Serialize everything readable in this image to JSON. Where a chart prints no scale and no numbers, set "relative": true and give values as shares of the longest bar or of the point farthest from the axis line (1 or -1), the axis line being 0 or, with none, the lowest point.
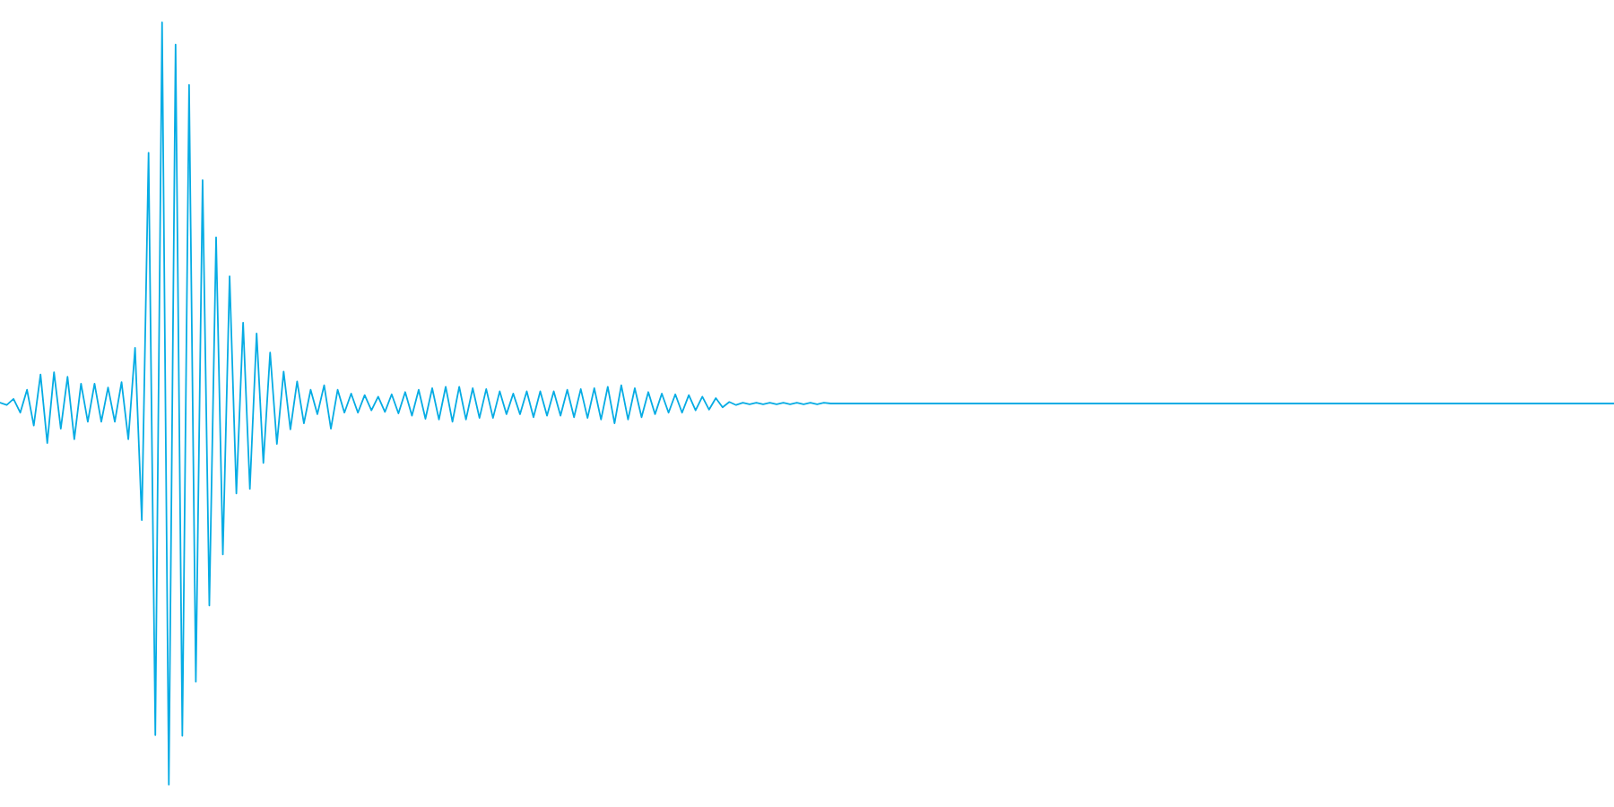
{
  "chart_data": {
    "type": "line",
    "relative": true,
    "color": "#06ace4",
    "categories": [
      null,
      null,
      null,
      null,
      null,
      null,
      null,
      null,
      null,
      null,
      null,
      null,
      null,
      null,
      null,
      null,
      null,
      null,
      null,
      null,
      null,
      null,
      null,
      null,
      null,
      null,
      null,
      null,
      null,
      null,
      null,
      null,
      null,
      null,
      null,
      null,
      null,
      null,
      null,
      null,
      null,
      null,
      null,
      null,
      null,
      null,
      null,
      null,
      null,
      null,
      null,
      null,
      null,
      null,
      null,
      null,
      null,
      null,
      null,
      null,
      null,
      null,
      null,
      null,
      null,
      null,
      null,
      null,
      null,
      null,
      null,
      null,
      null,
      null,
      null,
      null,
      null,
      null,
      null,
      null,
      null,
      null,
      null,
      null,
      null,
      null,
      null,
      null,
      null,
      null,
      null,
      null,
      null,
      null,
      null,
      null,
      null,
      null,
      null,
      null,
      null,
      null,
      null,
      null,
      null,
      null,
      null,
      null,
      null,
      null,
      null,
      null,
      null,
      null,
      null,
      null,
      null,
      null,
      null,
      null,
      null,
      null,
      null,
      null,
      null,
      null,
      null,
      null,
      null,
      null,
      null,
      null,
      null,
      null,
      null,
      null,
      null,
      null,
      null,
      null,
      null,
      null,
      null,
      null,
      null,
      null,
      null,
      null,
      null,
      null,
      null,
      null,
      null,
      null,
      null,
      null,
      null,
      null,
      null,
      null,
      null,
      null,
      null,
      null,
      null,
      null,
      null,
      null,
      null,
      null,
      null,
      null,
      null,
      null,
      null,
      null,
      null,
      null,
      null,
      null,
      null,
      null,
      null,
      null,
      null,
      null,
      null,
      null,
      null,
      null,
      null,
      null,
      null,
      null,
      null,
      null,
      null,
      null,
      null,
      null,
      null,
      null,
      null,
      null,
      null,
      null,
      null,
      null,
      null,
      null,
      null,
      null,
      null,
      null,
      null,
      null,
      null,
      null,
      null,
      null,
      null,
      null,
      null,
      null,
      null,
      null,
      null,
      null,
      null,
      null,
      null,
      null,
      null,
      null,
      null,
      null,
      null,
      null,
      null,
      null
    ],
    "values": [
      0.501,
      0.498,
      0.506,
      0.488,
      0.518,
      0.471,
      0.538,
      0.448,
      0.541,
      0.467,
      0.535,
      0.453,
      0.526,
      0.476,
      0.526,
      0.476,
      0.521,
      0.476,
      0.528,
      0.453,
      0.573,
      0.347,
      0.829,
      0.065,
      1.0,
      0.0,
      0.971,
      0.064,
      0.918,
      0.135,
      0.793,
      0.235,
      0.718,
      0.302,
      0.667,
      0.382,
      0.606,
      0.388,
      0.592,
      0.422,
      0.567,
      0.447,
      0.542,
      0.466,
      0.529,
      0.474,
      0.518,
      0.486,
      0.524,
      0.467,
      0.518,
      0.488,
      0.513,
      0.488,
      0.511,
      0.491,
      0.509,
      0.489,
      0.512,
      0.487,
      0.515,
      0.484,
      0.518,
      0.48,
      0.52,
      0.479,
      0.522,
      0.476,
      0.522,
      0.479,
      0.52,
      0.481,
      0.519,
      0.481,
      0.516,
      0.486,
      0.513,
      0.486,
      0.516,
      0.482,
      0.516,
      0.484,
      0.516,
      0.484,
      0.518,
      0.482,
      0.519,
      0.481,
      0.52,
      0.479,
      0.522,
      0.474,
      0.524,
      0.479,
      0.52,
      0.482,
      0.515,
      0.486,
      0.513,
      0.488,
      0.512,
      0.488,
      0.511,
      0.491,
      0.509,
      0.492,
      0.507,
      0.495,
      0.502,
      0.498,
      0.501,
      0.499,
      0.501,
      0.499,
      0.501,
      0.499,
      0.501,
      0.499,
      0.501,
      0.499,
      0.501,
      0.499,
      0.501,
      0.5,
      0.5,
      0.5,
      0.5,
      0.5,
      0.5,
      0.5,
      0.5,
      0.5,
      0.5,
      0.5,
      0.5,
      0.5,
      0.5,
      0.5,
      0.5,
      0.5,
      0.5,
      0.5,
      0.5,
      0.5,
      0.5,
      0.5,
      0.5,
      0.5,
      0.5,
      0.5,
      0.5,
      0.5,
      0.5,
      0.5,
      0.5,
      0.5,
      0.5,
      0.5,
      0.5,
      0.5,
      0.5,
      0.5,
      0.5,
      0.5,
      0.5,
      0.5,
      0.5,
      0.5,
      0.5,
      0.5,
      0.5,
      0.5,
      0.5,
      0.5,
      0.5,
      0.5,
      0.5,
      0.5,
      0.5,
      0.5,
      0.5,
      0.5,
      0.5,
      0.5,
      0.5,
      0.5,
      0.5,
      0.5,
      0.5,
      0.5,
      0.5,
      0.5,
      0.5,
      0.5,
      0.5,
      0.5,
      0.5,
      0.5,
      0.5,
      0.5,
      0.5,
      0.5,
      0.5,
      0.5,
      0.5,
      0.5,
      0.5,
      0.5,
      0.5,
      0.5,
      0.5,
      0.5,
      0.5,
      0.5,
      0.5,
      0.5,
      0.5,
      0.5,
      0.5,
      0.5,
      0.5,
      0.5,
      0.5,
      0.5,
      0.5,
      0.5,
      0.5,
      0.5,
      0.5,
      0.5,
      0.5,
      0.5,
      0.5,
      0.5,
      0.5,
      0.5,
      0.5,
      0.5,
      0.5,
      0.5
    ]
  }
}
